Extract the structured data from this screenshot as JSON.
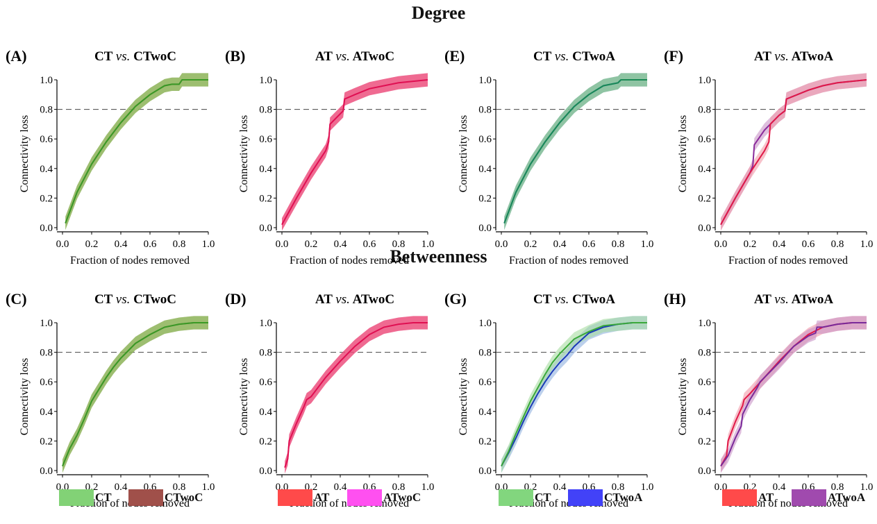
{
  "sections": {
    "degree": "Degree",
    "betweenness": "Betweenness"
  },
  "colors": {
    "CT": "#78b440",
    "CTwoC": "#b8ad8a",
    "AT": "#e8365a",
    "ATwoC": "#f58ad0",
    "CTwoA": "#2d5fd0",
    "ATwoA": "#8a3a9a",
    "CT_line": "#3a9a25",
    "AT_line": "#e01050"
  },
  "legends": [
    {
      "items": [
        {
          "label": "CT",
          "color": "#82d276"
        },
        {
          "label": "CTwoC",
          "color": "#a0504a"
        }
      ]
    },
    {
      "items": [
        {
          "label": "AT",
          "color": "#ff4a4a"
        },
        {
          "label": "ATwoC",
          "color": "#ff50f0"
        }
      ]
    },
    {
      "items": [
        {
          "label": "CT",
          "color": "#82d67e"
        },
        {
          "label": "CTwoA",
          "color": "#4242f8"
        }
      ]
    },
    {
      "items": [
        {
          "label": "AT",
          "color": "#ff4a4a"
        },
        {
          "label": "ATwoA",
          "color": "#a04aae"
        }
      ]
    }
  ],
  "chart_data": [
    {
      "id": "A",
      "panel_label": "(A)",
      "title_left": "CT ",
      "title_vs": "vs.",
      "title_right": " CTwoC",
      "metric": "Degree",
      "type": "line",
      "xlabel": "Fraction of nodes removed",
      "ylabel": "Connectivity loss",
      "xlim": [
        0,
        1
      ],
      "ylim": [
        0,
        1
      ],
      "xticks": [
        "0.0",
        "0.2",
        "0.4",
        "0.6",
        "0.8",
        "1.0"
      ],
      "yticks": [
        "0.0",
        "0.2",
        "0.4",
        "0.6",
        "0.8",
        "1.0"
      ],
      "threshold": 0.8,
      "band_width": 0.045,
      "series": [
        {
          "color": "#b8ad8a",
          "line": "#7a7560",
          "x": [
            0.02,
            0.1,
            0.2,
            0.3,
            0.4,
            0.5,
            0.6,
            0.7,
            0.75,
            0.8,
            0.82,
            1.0
          ],
          "y": [
            0.03,
            0.24,
            0.43,
            0.58,
            0.71,
            0.82,
            0.9,
            0.96,
            0.97,
            0.97,
            1.0,
            1.0
          ]
        },
        {
          "color": "#78b440",
          "line": "#3a9a25",
          "x": [
            0.02,
            0.1,
            0.2,
            0.3,
            0.4,
            0.5,
            0.6,
            0.7,
            0.75,
            0.8,
            0.82,
            1.0
          ],
          "y": [
            0.03,
            0.24,
            0.43,
            0.58,
            0.71,
            0.82,
            0.9,
            0.96,
            0.97,
            0.97,
            1.0,
            1.0
          ]
        }
      ]
    },
    {
      "id": "B",
      "panel_label": "(B)",
      "title_left": "AT ",
      "title_vs": "vs.",
      "title_right": " ATwoC",
      "metric": "Degree",
      "type": "line",
      "xlabel": "Fraction of nodes removed",
      "ylabel": "Connectivity loss",
      "xlim": [
        0,
        1
      ],
      "ylim": [
        0,
        1
      ],
      "xticks": [
        "0.0",
        "0.2",
        "0.4",
        "0.6",
        "0.8",
        "1.0"
      ],
      "yticks": [
        "0.0",
        "0.2",
        "0.4",
        "0.6",
        "0.8",
        "1.0"
      ],
      "threshold": 0.8,
      "band_width": 0.045,
      "series": [
        {
          "color": "#f58ad0",
          "line": "#e860b8",
          "x": [
            0.0,
            0.1,
            0.2,
            0.3,
            0.32,
            0.33,
            0.4,
            0.42,
            0.43,
            0.5,
            0.6,
            0.7,
            0.8,
            0.9,
            1.0
          ],
          "y": [
            0.02,
            0.2,
            0.37,
            0.52,
            0.58,
            0.7,
            0.77,
            0.79,
            0.87,
            0.9,
            0.94,
            0.96,
            0.98,
            0.99,
            1.0
          ]
        },
        {
          "color": "#e8365a",
          "line": "#e01050",
          "x": [
            0.0,
            0.1,
            0.2,
            0.3,
            0.32,
            0.33,
            0.4,
            0.42,
            0.43,
            0.5,
            0.6,
            0.7,
            0.8,
            0.9,
            1.0
          ],
          "y": [
            0.02,
            0.2,
            0.37,
            0.52,
            0.58,
            0.7,
            0.77,
            0.79,
            0.87,
            0.9,
            0.94,
            0.96,
            0.98,
            0.99,
            1.0
          ]
        }
      ]
    },
    {
      "id": "E",
      "panel_label": "(E)",
      "title_left": "CT ",
      "title_vs": "vs.",
      "title_right": " CTwoA",
      "metric": "Degree",
      "type": "line",
      "xlabel": "Fraction of nodes removed",
      "ylabel": "Connectivity loss",
      "xlim": [
        0,
        1
      ],
      "ylim": [
        0,
        1
      ],
      "xticks": [
        "0.0",
        "0.2",
        "0.4",
        "0.6",
        "0.8",
        "1.0"
      ],
      "yticks": [
        "0.0",
        "0.2",
        "0.4",
        "0.6",
        "0.8",
        "1.0"
      ],
      "threshold": 0.8,
      "band_width": 0.045,
      "series": [
        {
          "color": "#6d99cf",
          "line": "#1f5cc8",
          "x": [
            0.02,
            0.1,
            0.2,
            0.3,
            0.4,
            0.5,
            0.6,
            0.7,
            0.8,
            0.82,
            1.0
          ],
          "y": [
            0.03,
            0.24,
            0.43,
            0.58,
            0.71,
            0.82,
            0.9,
            0.96,
            0.98,
            1.0,
            1.0
          ]
        },
        {
          "color": "#7ec57a",
          "line": "#1a8a55",
          "x": [
            0.02,
            0.1,
            0.2,
            0.3,
            0.4,
            0.5,
            0.6,
            0.7,
            0.8,
            0.82,
            1.0
          ],
          "y": [
            0.03,
            0.24,
            0.43,
            0.58,
            0.71,
            0.82,
            0.9,
            0.96,
            0.98,
            1.0,
            1.0
          ]
        }
      ]
    },
    {
      "id": "F",
      "panel_label": "(F)",
      "title_left": "AT ",
      "title_vs": "vs.",
      "title_right": " ATwoA",
      "metric": "Degree",
      "type": "line",
      "xlabel": "Fraction of nodes removed",
      "ylabel": "Connectivity loss",
      "xlim": [
        0,
        1
      ],
      "ylim": [
        0,
        1
      ],
      "xticks": [
        "0.0",
        "0.2",
        "0.4",
        "0.6",
        "0.8",
        "1.0"
      ],
      "yticks": [
        "0.0",
        "0.2",
        "0.4",
        "0.6",
        "0.8",
        "1.0"
      ],
      "threshold": 0.8,
      "band_width": 0.045,
      "series": [
        {
          "color": "#c893c6",
          "line": "#8a2a9a",
          "x": [
            0.0,
            0.1,
            0.2,
            0.22,
            0.23,
            0.3,
            0.4,
            0.44,
            0.45,
            0.5,
            0.6,
            0.7,
            0.8,
            0.9,
            1.0
          ],
          "y": [
            0.02,
            0.2,
            0.37,
            0.42,
            0.56,
            0.66,
            0.76,
            0.79,
            0.87,
            0.89,
            0.93,
            0.96,
            0.98,
            0.99,
            1.0
          ]
        },
        {
          "color": "#f29aa8",
          "line": "#e01848",
          "x": [
            0.0,
            0.1,
            0.2,
            0.3,
            0.33,
            0.34,
            0.4,
            0.44,
            0.45,
            0.5,
            0.6,
            0.7,
            0.8,
            0.9,
            1.0
          ],
          "y": [
            0.02,
            0.2,
            0.37,
            0.52,
            0.58,
            0.7,
            0.76,
            0.79,
            0.87,
            0.89,
            0.93,
            0.96,
            0.98,
            0.99,
            1.0
          ]
        }
      ]
    },
    {
      "id": "C",
      "panel_label": "(C)",
      "title_left": "CT ",
      "title_vs": "vs.",
      "title_right": " CTwoC",
      "metric": "Betweenness",
      "type": "line",
      "xlabel": "Fraction of nodes removed",
      "ylabel": "Connectivity loss",
      "xlim": [
        0,
        1
      ],
      "ylim": [
        0,
        1
      ],
      "xticks": [
        "0.0",
        "0.2",
        "0.4",
        "0.6",
        "0.8",
        "1.0"
      ],
      "yticks": [
        "0.0",
        "0.2",
        "0.4",
        "0.6",
        "0.8",
        "1.0"
      ],
      "threshold": 0.8,
      "band_width": 0.045,
      "series": [
        {
          "color": "#b8ad8a",
          "line": "#7a7560",
          "x": [
            0.0,
            0.05,
            0.1,
            0.15,
            0.2,
            0.25,
            0.3,
            0.35,
            0.4,
            0.45,
            0.5,
            0.6,
            0.7,
            0.8,
            0.9,
            1.0
          ],
          "y": [
            0.03,
            0.15,
            0.24,
            0.35,
            0.47,
            0.55,
            0.63,
            0.7,
            0.76,
            0.81,
            0.86,
            0.92,
            0.97,
            0.99,
            1.0,
            1.0
          ]
        },
        {
          "color": "#78b440",
          "line": "#3a9a25",
          "x": [
            0.0,
            0.05,
            0.1,
            0.15,
            0.2,
            0.25,
            0.3,
            0.35,
            0.4,
            0.45,
            0.5,
            0.6,
            0.7,
            0.8,
            0.9,
            1.0
          ],
          "y": [
            0.03,
            0.15,
            0.24,
            0.35,
            0.47,
            0.55,
            0.63,
            0.7,
            0.76,
            0.81,
            0.86,
            0.92,
            0.97,
            0.99,
            1.0,
            1.0
          ]
        }
      ]
    },
    {
      "id": "D",
      "panel_label": "(D)",
      "title_left": "AT ",
      "title_vs": "vs.",
      "title_right": " ATwoC",
      "metric": "Betweenness",
      "type": "line",
      "xlabel": "Fraction of nodes removed",
      "ylabel": "Connectivity loss",
      "xlim": [
        0,
        1
      ],
      "ylim": [
        0,
        1
      ],
      "xticks": [
        "0.0",
        "0.2",
        "0.4",
        "0.6",
        "0.8",
        "1.0"
      ],
      "yticks": [
        "0.0",
        "0.2",
        "0.4",
        "0.6",
        "0.8",
        "1.0"
      ],
      "threshold": 0.8,
      "band_width": 0.045,
      "series": [
        {
          "color": "#f58ad0",
          "line": "#e860b8",
          "x": [
            0.02,
            0.04,
            0.05,
            0.1,
            0.15,
            0.17,
            0.2,
            0.3,
            0.4,
            0.5,
            0.6,
            0.7,
            0.8,
            0.9,
            1.0
          ],
          "y": [
            0.02,
            0.08,
            0.2,
            0.32,
            0.43,
            0.48,
            0.5,
            0.63,
            0.74,
            0.84,
            0.92,
            0.97,
            0.99,
            1.0,
            1.0
          ]
        },
        {
          "color": "#e8365a",
          "line": "#e01050",
          "x": [
            0.02,
            0.04,
            0.05,
            0.1,
            0.15,
            0.17,
            0.2,
            0.3,
            0.4,
            0.5,
            0.6,
            0.7,
            0.8,
            0.9,
            1.0
          ],
          "y": [
            0.02,
            0.08,
            0.2,
            0.32,
            0.43,
            0.48,
            0.5,
            0.63,
            0.74,
            0.84,
            0.92,
            0.97,
            0.99,
            1.0,
            1.0
          ]
        }
      ]
    },
    {
      "id": "G",
      "panel_label": "(G)",
      "title_left": "CT ",
      "title_vs": "vs.",
      "title_right": " CTwoA",
      "metric": "Betweenness",
      "type": "line",
      "xlabel": "Fraction of nodes removed",
      "ylabel": "Connectivity loss",
      "xlim": [
        0,
        1
      ],
      "ylim": [
        0,
        1
      ],
      "xticks": [
        "0.0",
        "0.2",
        "0.4",
        "0.6",
        "0.8",
        "1.0"
      ],
      "yticks": [
        "0.0",
        "0.2",
        "0.4",
        "0.6",
        "0.8",
        "1.0"
      ],
      "threshold": 0.8,
      "band_width": 0.045,
      "series": [
        {
          "color": "#8fb0e0",
          "line": "#1a3ab8",
          "x": [
            0.0,
            0.05,
            0.1,
            0.15,
            0.2,
            0.25,
            0.3,
            0.35,
            0.4,
            0.45,
            0.5,
            0.6,
            0.7,
            0.8,
            0.9,
            1.0
          ],
          "y": [
            0.03,
            0.12,
            0.22,
            0.33,
            0.43,
            0.52,
            0.6,
            0.67,
            0.73,
            0.78,
            0.84,
            0.93,
            0.97,
            0.99,
            1.0,
            1.0
          ]
        },
        {
          "color": "#a6dca0",
          "line": "#3aa83a",
          "x": [
            0.0,
            0.05,
            0.1,
            0.15,
            0.2,
            0.25,
            0.3,
            0.35,
            0.4,
            0.45,
            0.5,
            0.6,
            0.7,
            0.8,
            0.9,
            1.0
          ],
          "y": [
            0.03,
            0.13,
            0.25,
            0.36,
            0.47,
            0.56,
            0.65,
            0.73,
            0.79,
            0.84,
            0.89,
            0.94,
            0.98,
            0.99,
            1.0,
            1.0
          ]
        }
      ]
    },
    {
      "id": "H",
      "panel_label": "(H)",
      "title_left": "AT ",
      "title_vs": "vs.",
      "title_right": " ATwoA",
      "metric": "Betweenness",
      "type": "line",
      "xlabel": "Fraction of nodes removed",
      "ylabel": "Connectivity loss",
      "xlim": [
        0,
        1
      ],
      "ylim": [
        0,
        1
      ],
      "xticks": [
        "0.0",
        "0.2",
        "0.4",
        "0.6",
        "0.8",
        "1.0"
      ],
      "yticks": [
        "0.0",
        "0.2",
        "0.4",
        "0.6",
        "0.8",
        "1.0"
      ],
      "threshold": 0.8,
      "band_width": 0.045,
      "series": [
        {
          "color": "#f29aa8",
          "line": "#e01848",
          "x": [
            0.0,
            0.04,
            0.05,
            0.1,
            0.15,
            0.16,
            0.2,
            0.3,
            0.4,
            0.5,
            0.6,
            0.7,
            0.8,
            0.9,
            1.0
          ],
          "y": [
            0.03,
            0.1,
            0.2,
            0.33,
            0.44,
            0.48,
            0.52,
            0.63,
            0.74,
            0.84,
            0.92,
            0.97,
            0.99,
            1.0,
            1.0
          ]
        },
        {
          "color": "#c893c6",
          "line": "#7a2a9a",
          "x": [
            0.0,
            0.05,
            0.1,
            0.14,
            0.15,
            0.2,
            0.25,
            0.27,
            0.3,
            0.4,
            0.5,
            0.6,
            0.65,
            0.66,
            0.7,
            0.8,
            0.9,
            1.0
          ],
          "y": [
            0.03,
            0.1,
            0.22,
            0.3,
            0.38,
            0.48,
            0.56,
            0.6,
            0.63,
            0.73,
            0.84,
            0.91,
            0.93,
            0.97,
            0.97,
            0.99,
            1.0,
            1.0
          ]
        }
      ]
    }
  ]
}
